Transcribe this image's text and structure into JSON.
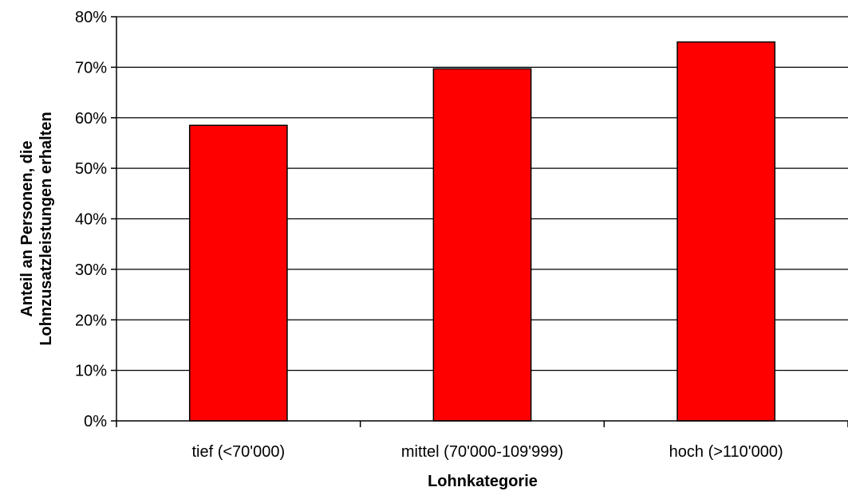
{
  "chart_data": {
    "type": "bar",
    "title": "",
    "categories": [
      "tief (<70'000)",
      "mittel (70'000-109'999)",
      "hoch (>110'000)"
    ],
    "values": [
      0.585,
      0.697,
      0.75
    ],
    "xlabel": "Lohnkategorie",
    "ylabel_lines": [
      "Anteil an Personen, die",
      "Lohnzusatzleistungen erhalten"
    ],
    "ylim": [
      0,
      0.8
    ],
    "yticks": [
      0,
      0.1,
      0.2,
      0.3,
      0.4,
      0.5,
      0.6,
      0.7,
      0.8
    ],
    "ytick_labels": [
      "0%",
      "10%",
      "20%",
      "30%",
      "40%",
      "50%",
      "60%",
      "70%",
      "80%"
    ],
    "grid": true,
    "legend": "none",
    "bar_color": "#ff0000",
    "bar_edge_color": "#000000"
  }
}
